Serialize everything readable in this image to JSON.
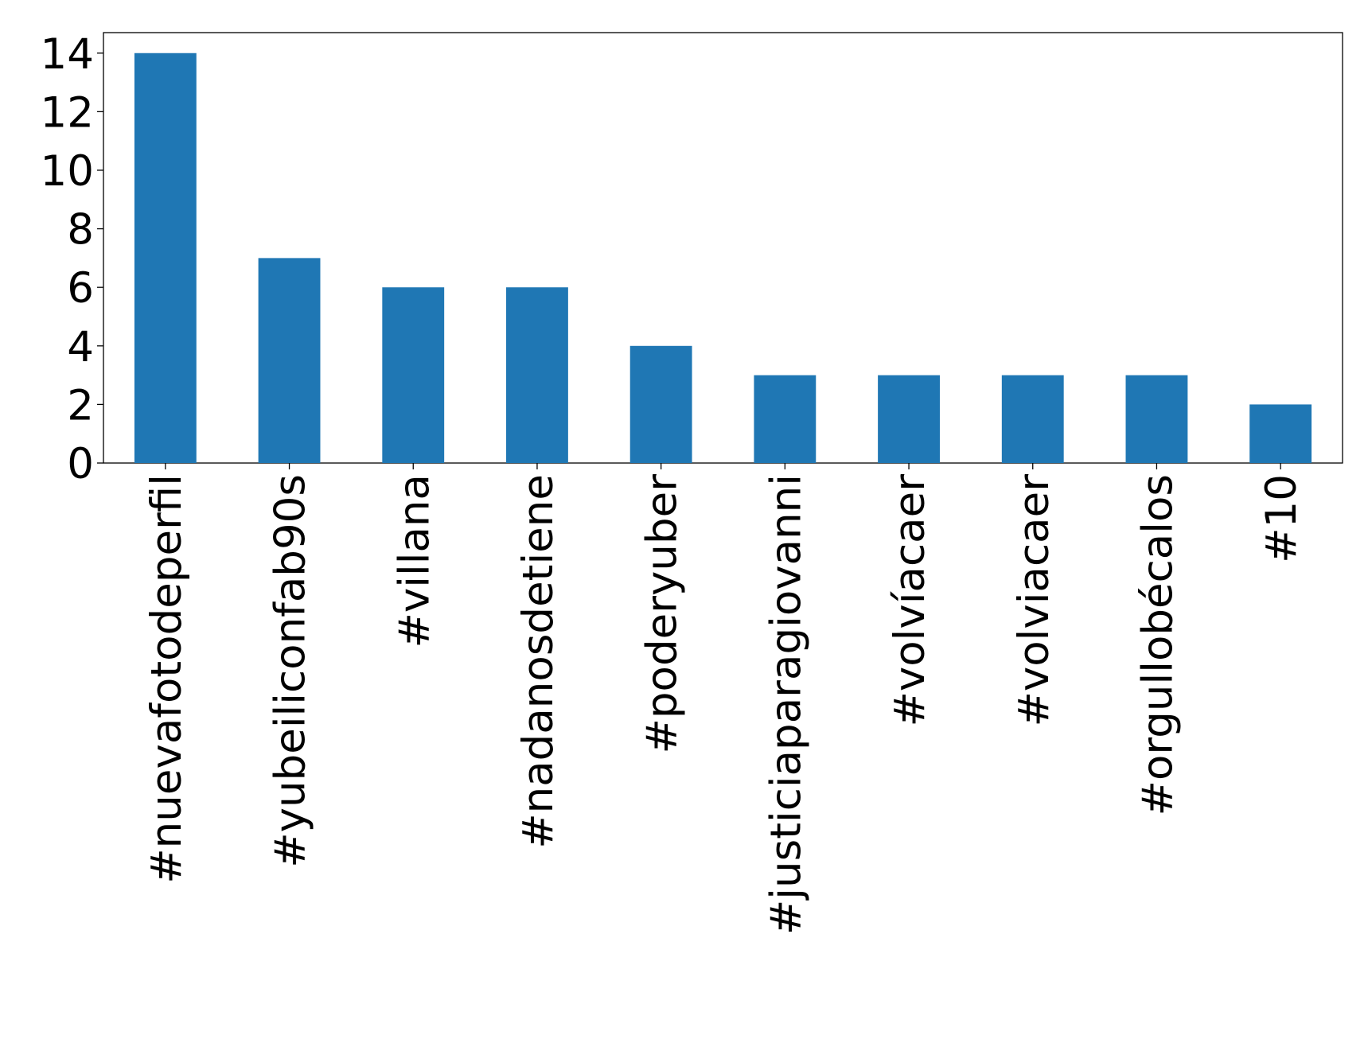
{
  "chart_data": {
    "type": "bar",
    "categories": [
      "#nuevafotodeperfil",
      "#yubeiliconfab90s",
      "#villana",
      "#nadanosdetiene",
      "#poderyuber",
      "#justiciaparagiovanni",
      "#volvíacaer",
      "#volviacaer",
      "#orgullobécalos",
      "#10"
    ],
    "values": [
      14,
      7,
      6,
      6,
      4,
      3,
      3,
      3,
      3,
      2
    ],
    "color": "#1f77b4",
    "ylim": [
      0,
      14.7
    ],
    "yticks": [
      0,
      2,
      4,
      6,
      8,
      10,
      12,
      14
    ],
    "grid": false
  }
}
